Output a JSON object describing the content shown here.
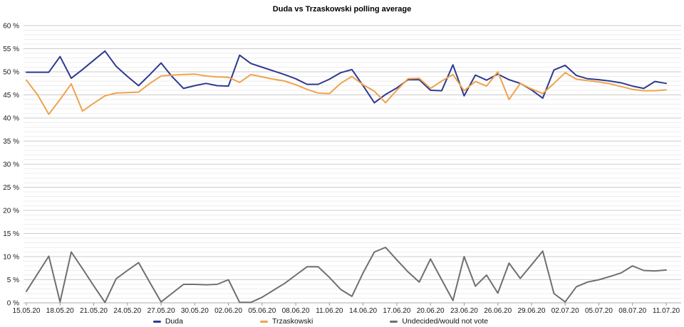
{
  "chart_data": {
    "type": "line",
    "title": "Duda vs Trzaskowski polling average",
    "x_tick_labels": [
      "15.05.20",
      "18.05.20",
      "21.05.20",
      "24.05.20",
      "27.05.20",
      "30.05.20",
      "02.06.20",
      "05.06.20",
      "08.06.20",
      "11.06.20",
      "14.06.20",
      "17.06.20",
      "20.06.20",
      "23.06.20",
      "26.06.20",
      "29.06.20",
      "02.07.20",
      "05.07.20",
      "08.07.20",
      "11.07.20"
    ],
    "x_points_per_tick": 3,
    "x_total_points": 58,
    "x_resolution": "daily",
    "ylim": [
      0,
      60
    ],
    "y_tick_step": 5,
    "y_minor_step": 1,
    "y_tick_suffix": " %",
    "grid": {
      "major_horizontal": true,
      "minor_horizontal": true,
      "vertical": false
    },
    "legend_position": "bottom",
    "colors": {
      "grid_major": "#cbcbcb",
      "grid_minor": "#ededed",
      "axis_line": "#ababab",
      "tick_mark": "#999999",
      "label_text": "#1a1a1a"
    },
    "series": [
      {
        "name": "Duda",
        "color": "#2e3a8f",
        "values": [
          49.9,
          49.9,
          49.9,
          53.3,
          48.6,
          50.5,
          52.5,
          54.5,
          51.2,
          49.0,
          47.0,
          49.4,
          51.9,
          48.9,
          46.4,
          47.0,
          47.5,
          47.0,
          46.9,
          53.6,
          51.8,
          51.0,
          50.2,
          49.4,
          48.5,
          47.3,
          47.3,
          48.4,
          49.8,
          50.5,
          47.0,
          43.3,
          45.1,
          46.5,
          48.3,
          48.3,
          46.0,
          45.9,
          51.5,
          44.8,
          49.3,
          48.2,
          49.5,
          48.3,
          47.5,
          46.1,
          44.3,
          50.4,
          51.4,
          49.2,
          48.5,
          48.3,
          48.0,
          47.6,
          46.9,
          46.4,
          47.9,
          47.5
        ]
      },
      {
        "name": "Trzaskowski",
        "color": "#f0a24b",
        "values": [
          48.2,
          45.0,
          40.8,
          44.0,
          47.4,
          41.5,
          43.2,
          44.8,
          45.4,
          45.5,
          45.6,
          47.5,
          49.1,
          49.3,
          49.4,
          49.5,
          49.1,
          48.9,
          48.8,
          47.7,
          49.4,
          48.9,
          48.4,
          48.0,
          47.2,
          46.2,
          45.4,
          45.3,
          47.5,
          49.0,
          47.2,
          45.8,
          43.3,
          46.0,
          48.5,
          48.6,
          46.4,
          48.0,
          49.4,
          45.9,
          47.9,
          46.9,
          50.0,
          44.0,
          47.5,
          46.3,
          45.3,
          47.5,
          49.8,
          48.4,
          48.1,
          47.8,
          47.4,
          46.8,
          46.2,
          45.9,
          45.9,
          46.1
        ]
      },
      {
        "name": "Undecided/would not vote",
        "color": "#6f6f6f",
        "values": [
          2.5,
          6.3,
          10.1,
          0.2,
          11.0,
          7.4,
          3.7,
          0.1,
          5.2,
          7.0,
          8.7,
          4.4,
          0.2,
          2.1,
          4.0,
          4.0,
          3.9,
          4.0,
          5.0,
          0.1,
          0.1,
          1.2,
          2.7,
          4.2,
          6.0,
          7.8,
          7.8,
          5.5,
          2.9,
          1.4,
          6.5,
          11.0,
          12.0,
          9.3,
          6.7,
          4.5,
          9.5,
          5.0,
          0.5,
          10.0,
          3.6,
          6.0,
          2.1,
          8.6,
          5.3,
          8.2,
          11.2,
          2.0,
          0.2,
          3.5,
          4.5,
          5.0,
          5.7,
          6.5,
          8.0,
          7.0,
          6.9,
          7.1
        ]
      }
    ]
  }
}
